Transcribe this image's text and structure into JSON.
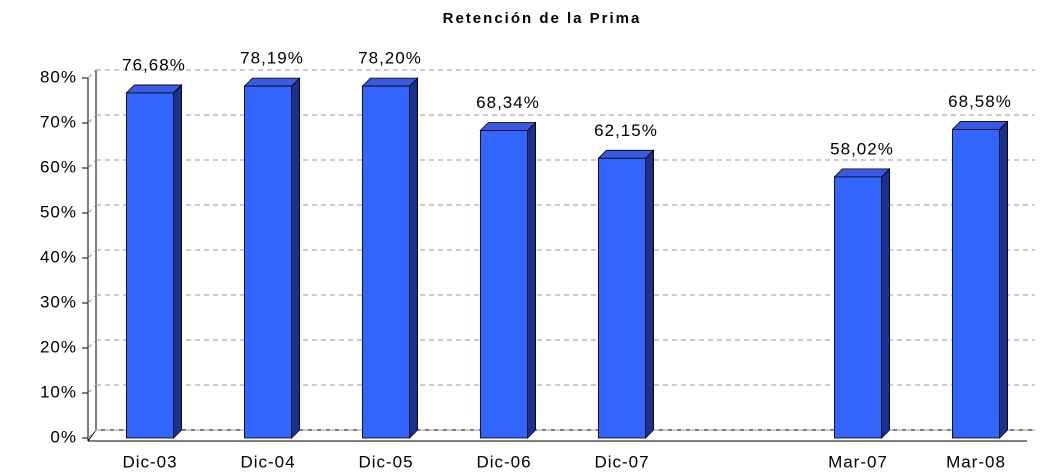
{
  "chart_data": {
    "type": "bar",
    "title": "Retención de la Prima",
    "categories": [
      "Dic-03",
      "Dic-04",
      "Dic-05",
      "Dic-06",
      "Dic-07",
      null,
      "Mar-07",
      "Mar-08"
    ],
    "values": [
      76.68,
      78.19,
      78.2,
      68.34,
      62.15,
      null,
      58.02,
      68.58
    ],
    "value_labels": [
      "76,68%",
      "78,19%",
      "78,20%",
      "68,34%",
      "62,15%",
      null,
      "58,02%",
      "68,58%"
    ],
    "color": "#3366ff",
    "ylim": [
      0,
      80
    ],
    "yticks": [
      {
        "value": 0,
        "label": "0%"
      },
      {
        "value": 10,
        "label": "10%"
      },
      {
        "value": 20,
        "label": "20%"
      },
      {
        "value": 30,
        "label": "30%"
      },
      {
        "value": 40,
        "label": "40%"
      },
      {
        "value": 50,
        "label": "50%"
      },
      {
        "value": 60,
        "label": "60%"
      },
      {
        "value": 70,
        "label": "70%"
      },
      {
        "value": 80,
        "label": "80%"
      }
    ],
    "grid": true
  }
}
